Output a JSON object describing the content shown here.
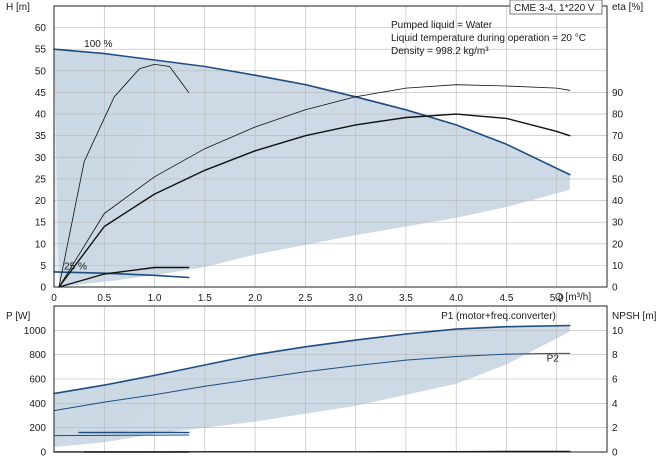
{
  "title_box": "CME 3-4, 1*220 V",
  "info_lines": [
    "Pumped liquid = Water",
    "Liquid temperature during operation = 20 °C",
    "Density = 998.2 kg/m³"
  ],
  "colors": {
    "envelope_fill": "#c9d7e3",
    "envelope_light": "#e4edf5",
    "curve_dark_blue": "#1e4d80",
    "curve_black": "#111111",
    "grid": "#b8b8b8"
  },
  "chart_data": [
    {
      "type": "line",
      "name": "head-efficiency",
      "xlabel": "Q [m³/h]",
      "ylabel_left": "H [m]",
      "ylabel_right": "eta [%]",
      "xlim": [
        0,
        5.5
      ],
      "ylim_left": [
        0,
        65
      ],
      "ylim_right": [
        0,
        130
      ],
      "x_ticks": [
        "0",
        "0.5",
        "1.0",
        "1.5",
        "2.0",
        "2.5",
        "3.0",
        "3.5",
        "4.0",
        "4.5",
        "5.0"
      ],
      "y_ticks_left": [
        "0",
        "5",
        "10",
        "15",
        "20",
        "25",
        "30",
        "35",
        "40",
        "45",
        "50",
        "55",
        "60"
      ],
      "y_ticks_right": [
        "0",
        "10",
        "20",
        "30",
        "40",
        "50",
        "60",
        "70",
        "80",
        "90"
      ],
      "annotations": [
        {
          "text": "100 %",
          "x": 0.3,
          "y": 55.5
        },
        {
          "text": "25 %",
          "x": 0.1,
          "y": 4.0
        }
      ],
      "envelope": {
        "upper": [
          [
            0,
            55
          ],
          [
            1.0,
            52.5
          ],
          [
            2.0,
            49
          ],
          [
            3.0,
            44
          ],
          [
            4.0,
            37.5
          ],
          [
            4.5,
            33
          ],
          [
            5.13,
            26
          ]
        ],
        "lower": [
          [
            5.13,
            22.5
          ],
          [
            4.5,
            18.5
          ],
          [
            4.0,
            16
          ],
          [
            3.0,
            12
          ],
          [
            2.0,
            7.5
          ],
          [
            1.5,
            4.6
          ],
          [
            1.0,
            2.7
          ],
          [
            0.5,
            1.2
          ],
          [
            0.05,
            0
          ]
        ]
      },
      "light_region": {
        "points": [
          [
            0,
            55
          ],
          [
            1.0,
            52.5
          ],
          [
            0.95,
            40
          ],
          [
            0.75,
            25
          ],
          [
            0.5,
            12
          ],
          [
            0.35,
            4
          ],
          [
            0,
            3.5
          ]
        ]
      },
      "series": [
        {
          "name": "H 100 %",
          "color": "#1e4d80",
          "width": 1.6,
          "points": [
            [
              0,
              55
            ],
            [
              0.5,
              54
            ],
            [
              1.0,
              52.5
            ],
            [
              1.5,
              51
            ],
            [
              2.0,
              49
            ],
            [
              2.5,
              46.8
            ],
            [
              3.0,
              44
            ],
            [
              3.5,
              41
            ],
            [
              4.0,
              37.5
            ],
            [
              4.5,
              33
            ],
            [
              5.13,
              26
            ]
          ]
        },
        {
          "name": "H 25 %",
          "color": "#1e4d80",
          "width": 1.6,
          "points": [
            [
              0,
              3.5
            ],
            [
              0.5,
              3.2
            ],
            [
              1.0,
              2.7
            ],
            [
              1.34,
              2.2
            ]
          ]
        },
        {
          "name": "eta 100 %",
          "color": "#111111",
          "width": 1.4,
          "points": [
            [
              0.05,
              0
            ],
            [
              0.5,
              14
            ],
            [
              1.0,
              21.5
            ],
            [
              1.5,
              27
            ],
            [
              2.0,
              31.5
            ],
            [
              2.5,
              35
            ],
            [
              3.0,
              37.5
            ],
            [
              3.5,
              39.2
            ],
            [
              4.0,
              40
            ],
            [
              4.5,
              39
            ],
            [
              5.0,
              36
            ],
            [
              5.13,
              35
            ]
          ]
        },
        {
          "name": "eta 25 %",
          "color": "#111111",
          "width": 1.4,
          "points": [
            [
              0.05,
              0
            ],
            [
              0.5,
              3
            ],
            [
              1.0,
              4.5
            ],
            [
              1.34,
              4.5
            ]
          ]
        },
        {
          "name": "eta thin 100 %",
          "color": "#111111",
          "width": 0.8,
          "points": [
            [
              0.05,
              0
            ],
            [
              0.5,
              17
            ],
            [
              1.0,
              25.5
            ],
            [
              1.5,
              32
            ],
            [
              2.0,
              37
            ],
            [
              2.5,
              41
            ],
            [
              3.0,
              44
            ],
            [
              3.5,
              46
            ],
            [
              4.0,
              46.8
            ],
            [
              4.5,
              46.5
            ],
            [
              5.0,
              46
            ],
            [
              5.13,
              45.5
            ]
          ]
        },
        {
          "name": "eta thin 25 %",
          "color": "#111111",
          "width": 0.8,
          "points": [
            [
              0.05,
              0
            ],
            [
              0.3,
              29
            ],
            [
              0.6,
              44
            ],
            [
              0.85,
              50.5
            ],
            [
              1.0,
              51.5
            ],
            [
              1.15,
              51
            ],
            [
              1.34,
              45
            ]
          ]
        }
      ]
    },
    {
      "type": "line",
      "name": "power-npsh",
      "ylabel_left": "P [W]",
      "ylabel_right": "NPSH [m]",
      "xlim": [
        0,
        5.5
      ],
      "ylim_left": [
        0,
        1200
      ],
      "ylim_right": [
        0,
        12
      ],
      "y_ticks_left": [
        "0",
        "200",
        "400",
        "600",
        "800",
        "1000"
      ],
      "y_ticks_right": [
        "0",
        "2",
        "4",
        "6",
        "8",
        "10"
      ],
      "annotations": [
        {
          "text": "P1 (motor+freq.converter)",
          "x": 3.85,
          "y": 1095
        },
        {
          "text": "P2",
          "x": 4.9,
          "y": 745
        }
      ],
      "envelope": {
        "upper": [
          [
            0,
            480
          ],
          [
            1.0,
            630
          ],
          [
            2.0,
            800
          ],
          [
            3.0,
            920
          ],
          [
            4.0,
            1010
          ],
          [
            4.5,
            1030
          ],
          [
            5.13,
            1040
          ]
        ],
        "lower": [
          [
            5.13,
            990
          ],
          [
            4.5,
            720
          ],
          [
            4.0,
            560
          ],
          [
            3.0,
            380
          ],
          [
            2.0,
            250
          ],
          [
            1.0,
            150
          ],
          [
            0.5,
            80
          ],
          [
            0,
            40
          ]
        ]
      },
      "light_region": {
        "points": [
          [
            0,
            480
          ],
          [
            1.0,
            630
          ],
          [
            0.9,
            300
          ],
          [
            0.6,
            190
          ],
          [
            0.3,
            140
          ],
          [
            0,
            130
          ]
        ]
      },
      "series": [
        {
          "name": "P1 100 %",
          "color": "#1e4d80",
          "width": 1.6,
          "points": [
            [
              0,
              480
            ],
            [
              0.5,
              550
            ],
            [
              1.0,
              630
            ],
            [
              1.5,
              715
            ],
            [
              2.0,
              800
            ],
            [
              2.5,
              865
            ],
            [
              3.0,
              920
            ],
            [
              3.5,
              970
            ],
            [
              4.0,
              1010
            ],
            [
              4.5,
              1030
            ],
            [
              5.13,
              1040
            ]
          ]
        },
        {
          "name": "P2 100 %",
          "color": "#1e4d80",
          "width": 1.0,
          "points": [
            [
              0,
              340
            ],
            [
              0.5,
              410
            ],
            [
              1.0,
              470
            ],
            [
              1.5,
              540
            ],
            [
              2.0,
              600
            ],
            [
              2.5,
              660
            ],
            [
              3.0,
              710
            ],
            [
              3.5,
              755
            ],
            [
              4.0,
              785
            ],
            [
              4.5,
              805
            ],
            [
              5.0,
              810
            ],
            [
              5.13,
              810
            ]
          ]
        },
        {
          "name": "P1 25 %",
          "color": "#1e4d80",
          "width": 1.6,
          "points": [
            [
              0.25,
              160
            ],
            [
              1.34,
              160
            ]
          ]
        },
        {
          "name": "P2 25 %",
          "color": "#1e4d80",
          "width": 1.0,
          "points": [
            [
              0,
              135
            ],
            [
              1.34,
              140
            ]
          ]
        },
        {
          "name": "NPSH",
          "color": "#111111",
          "width": 1.4,
          "points": [
            [
              0,
              1.2
            ],
            [
              1.0,
              1.2
            ],
            [
              1.5,
              1.25
            ],
            [
              2.0,
              1.3
            ],
            [
              2.5,
              1.45
            ],
            [
              3.0,
              1.7
            ],
            [
              3.5,
              2.1
            ],
            [
              4.0,
              2.8
            ],
            [
              4.5,
              3.7
            ],
            [
              5.13,
              4.9
            ]
          ]
        },
        {
          "name": "NPSH 25 %",
          "color": "#111111",
          "width": 1.4,
          "points": [
            [
              0.3,
              0.1
            ],
            [
              1.34,
              0.2
            ]
          ]
        }
      ]
    }
  ]
}
